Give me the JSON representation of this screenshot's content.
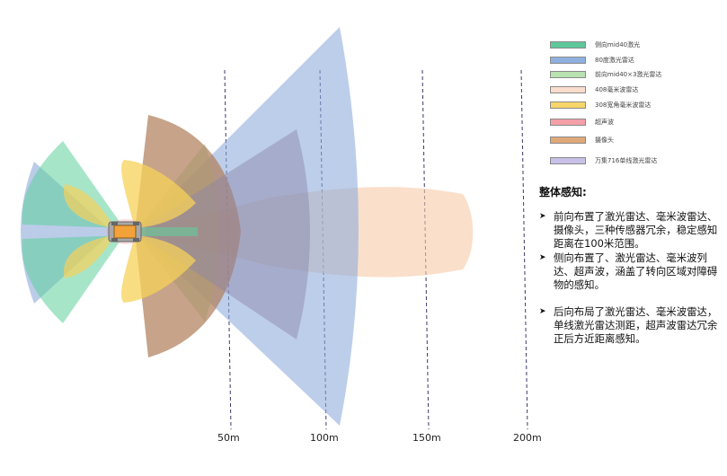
{
  "legend": [
    {
      "label": "侧向mid40激光",
      "color": "#5ec89a"
    },
    {
      "label": "80度激光雷达",
      "color": "#8fb0e0"
    },
    {
      "label": "前向mid40×3激光雷达",
      "color": "#b8e2b0"
    },
    {
      "label": "408毫米波雷达",
      "color": "#f9dccb"
    },
    {
      "label": "308宽角毫米波雷达",
      "color": "#f7d56a"
    },
    {
      "label": "超声波",
      "color": "#f3a0a8"
    },
    {
      "label": "摄像头",
      "color": "#e0a878"
    },
    {
      "label": "万集716单线激光雷达",
      "color": "#c8c0e8"
    }
  ],
  "distances": [
    "50m",
    "100m",
    "150m",
    "200m"
  ],
  "summary": {
    "title": "整体感知:",
    "bullets": [
      "前向布置了激光雷达、毫米波雷达、摄像头，三种传感器冗余，稳定感知距离在100米范围。",
      "侧向布置了、激光雷达、毫米波列达、超声波，涵盖了转向区域对障碍物的感知。",
      "后向布局了激光雷达、毫米波雷达，单线激光雷达测距，超声波雷达冗余正后方近距离感知。"
    ]
  }
}
